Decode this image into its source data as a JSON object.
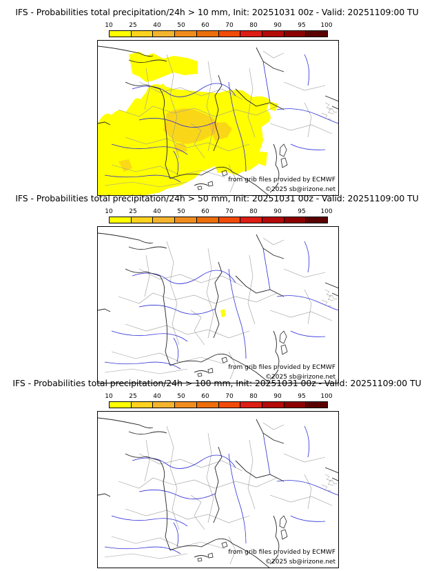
{
  "colors": {
    "scale": [
      "#ffff00",
      "#ffd21e",
      "#f5b42d",
      "#f08c1e",
      "#eb6e0a",
      "#f04b0a",
      "#dc1e14",
      "#b40a0a",
      "#8c0000",
      "#5a0000"
    ],
    "border": "#222222",
    "river": "#2a2ad8",
    "admin": "#9a9a9a",
    "precip": "#ffff00",
    "precip_orange": "#f5b42d"
  },
  "scale_labels": [
    "10",
    "25",
    "40",
    "50",
    "60",
    "70",
    "80",
    "90",
    "95",
    "100"
  ],
  "panels": [
    {
      "title": "IFS - Probabilities total precipitation/24h > 10 mm, Init: 20251031 00z - Valid: 20251109:00 TU",
      "credit_line1": "from grib files provided by ECMWF",
      "credit_line2": "©2025 sb@irizone.net"
    },
    {
      "title": "IFS - Probabilities total precipitation/24h > 50 mm, Init: 20251031 00z - Valid: 20251109:00 TU",
      "credit_line1": "from grib files provided by ECMWF",
      "credit_line2": "©2025 sb@irizone.net"
    },
    {
      "title": "IFS - Probabilities total precipitation/24h > 100 mm, Init: 20251031 00z - Valid: 20251109:00 TU",
      "credit_line1": "from grib files provided by ECMWF",
      "credit_line2": "©2025 sb@irizone.net"
    }
  ]
}
